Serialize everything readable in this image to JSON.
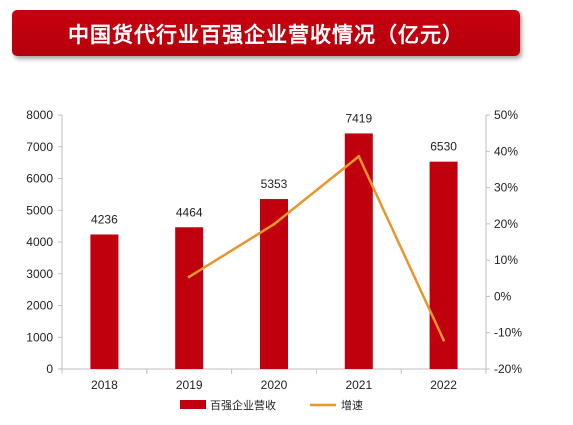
{
  "title": "中国货代行业百强企业营收情况（亿元）",
  "colors": {
    "banner": "#c00000",
    "bar": "#c0000c",
    "line": "#e8962e",
    "axis": "#bfbfbf",
    "text": "#222222"
  },
  "chart_data": {
    "type": "bar",
    "categories": [
      "2018",
      "2019",
      "2020",
      "2021",
      "2022"
    ],
    "series": [
      {
        "name": "百强企业营收",
        "type": "bar",
        "axis": "left",
        "values": [
          4236,
          4464,
          5353,
          7419,
          6530
        ],
        "labels": [
          "4236",
          "4464",
          "5353",
          "7419",
          "6530"
        ]
      },
      {
        "name": "增速",
        "type": "line",
        "axis": "right",
        "values": [
          null,
          5.4,
          19.9,
          38.6,
          -12.0
        ]
      }
    ],
    "y_left": {
      "min": 0,
      "max": 8000,
      "ticks": [
        "0",
        "1000",
        "2000",
        "3000",
        "4000",
        "5000",
        "6000",
        "7000",
        "8000"
      ]
    },
    "y_right": {
      "min": -20,
      "max": 50,
      "ticks": [
        "-20%",
        "-10%",
        "0%",
        "10%",
        "20%",
        "30%",
        "40%",
        "50%"
      ]
    },
    "legend": [
      "百强企业营收",
      "增速"
    ],
    "legend_position": "bottom",
    "grid": false
  }
}
